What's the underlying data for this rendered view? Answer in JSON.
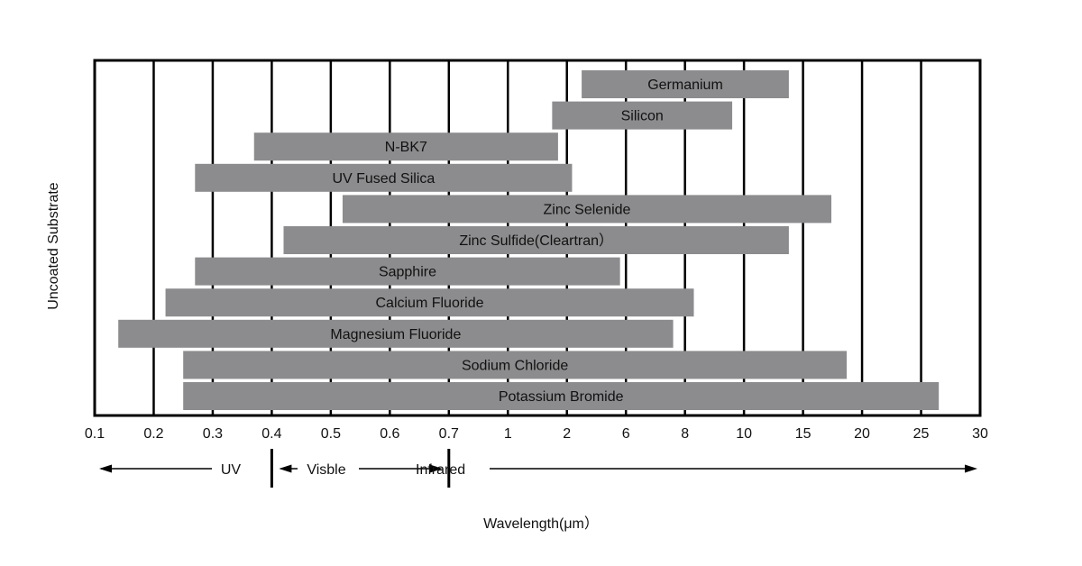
{
  "chart_data": {
    "type": "bar",
    "orientation": "horizontal-range",
    "ylabel": "Uncoated Substrate",
    "xlabel": "Wavelength(μm）",
    "x_ticks": [
      "0.1",
      "0.2",
      "0.3",
      "0.4",
      "0.5",
      "0.6",
      "0.7",
      "1",
      "2",
      "6",
      "8",
      "10",
      "15",
      "20",
      "25",
      "30"
    ],
    "series": [
      {
        "name": "Germanium",
        "start": 3.0,
        "end": 13.8
      },
      {
        "name": "Silicon",
        "start": 1.75,
        "end": 9.6
      },
      {
        "name": "N-BK7",
        "start": 0.37,
        "end": 1.85
      },
      {
        "name": "UV Fused Silica",
        "start": 0.27,
        "end": 2.35
      },
      {
        "name": "Zinc Selenide",
        "start": 0.52,
        "end": 17.4
      },
      {
        "name": "Zinc Sulfide(Cleartran）",
        "start": 0.42,
        "end": 13.8
      },
      {
        "name": "Sapphire",
        "start": 0.27,
        "end": 5.6
      },
      {
        "name": "Calcium Fluoride",
        "start": 0.22,
        "end": 8.3
      },
      {
        "name": "Magnesium Fluoride",
        "start": 0.14,
        "end": 7.6
      },
      {
        "name": "Sodium Chloride",
        "start": 0.25,
        "end": 18.7
      },
      {
        "name": "Potassium Bromide",
        "start": 0.25,
        "end": 26.5
      }
    ],
    "regions": [
      {
        "label": "UV"
      },
      {
        "label": "Visble"
      },
      {
        "label": "Infrared"
      }
    ],
    "colors": {
      "bar": "#8c8c8e",
      "line": "#000000",
      "text": "#111111"
    },
    "grid": true
  }
}
